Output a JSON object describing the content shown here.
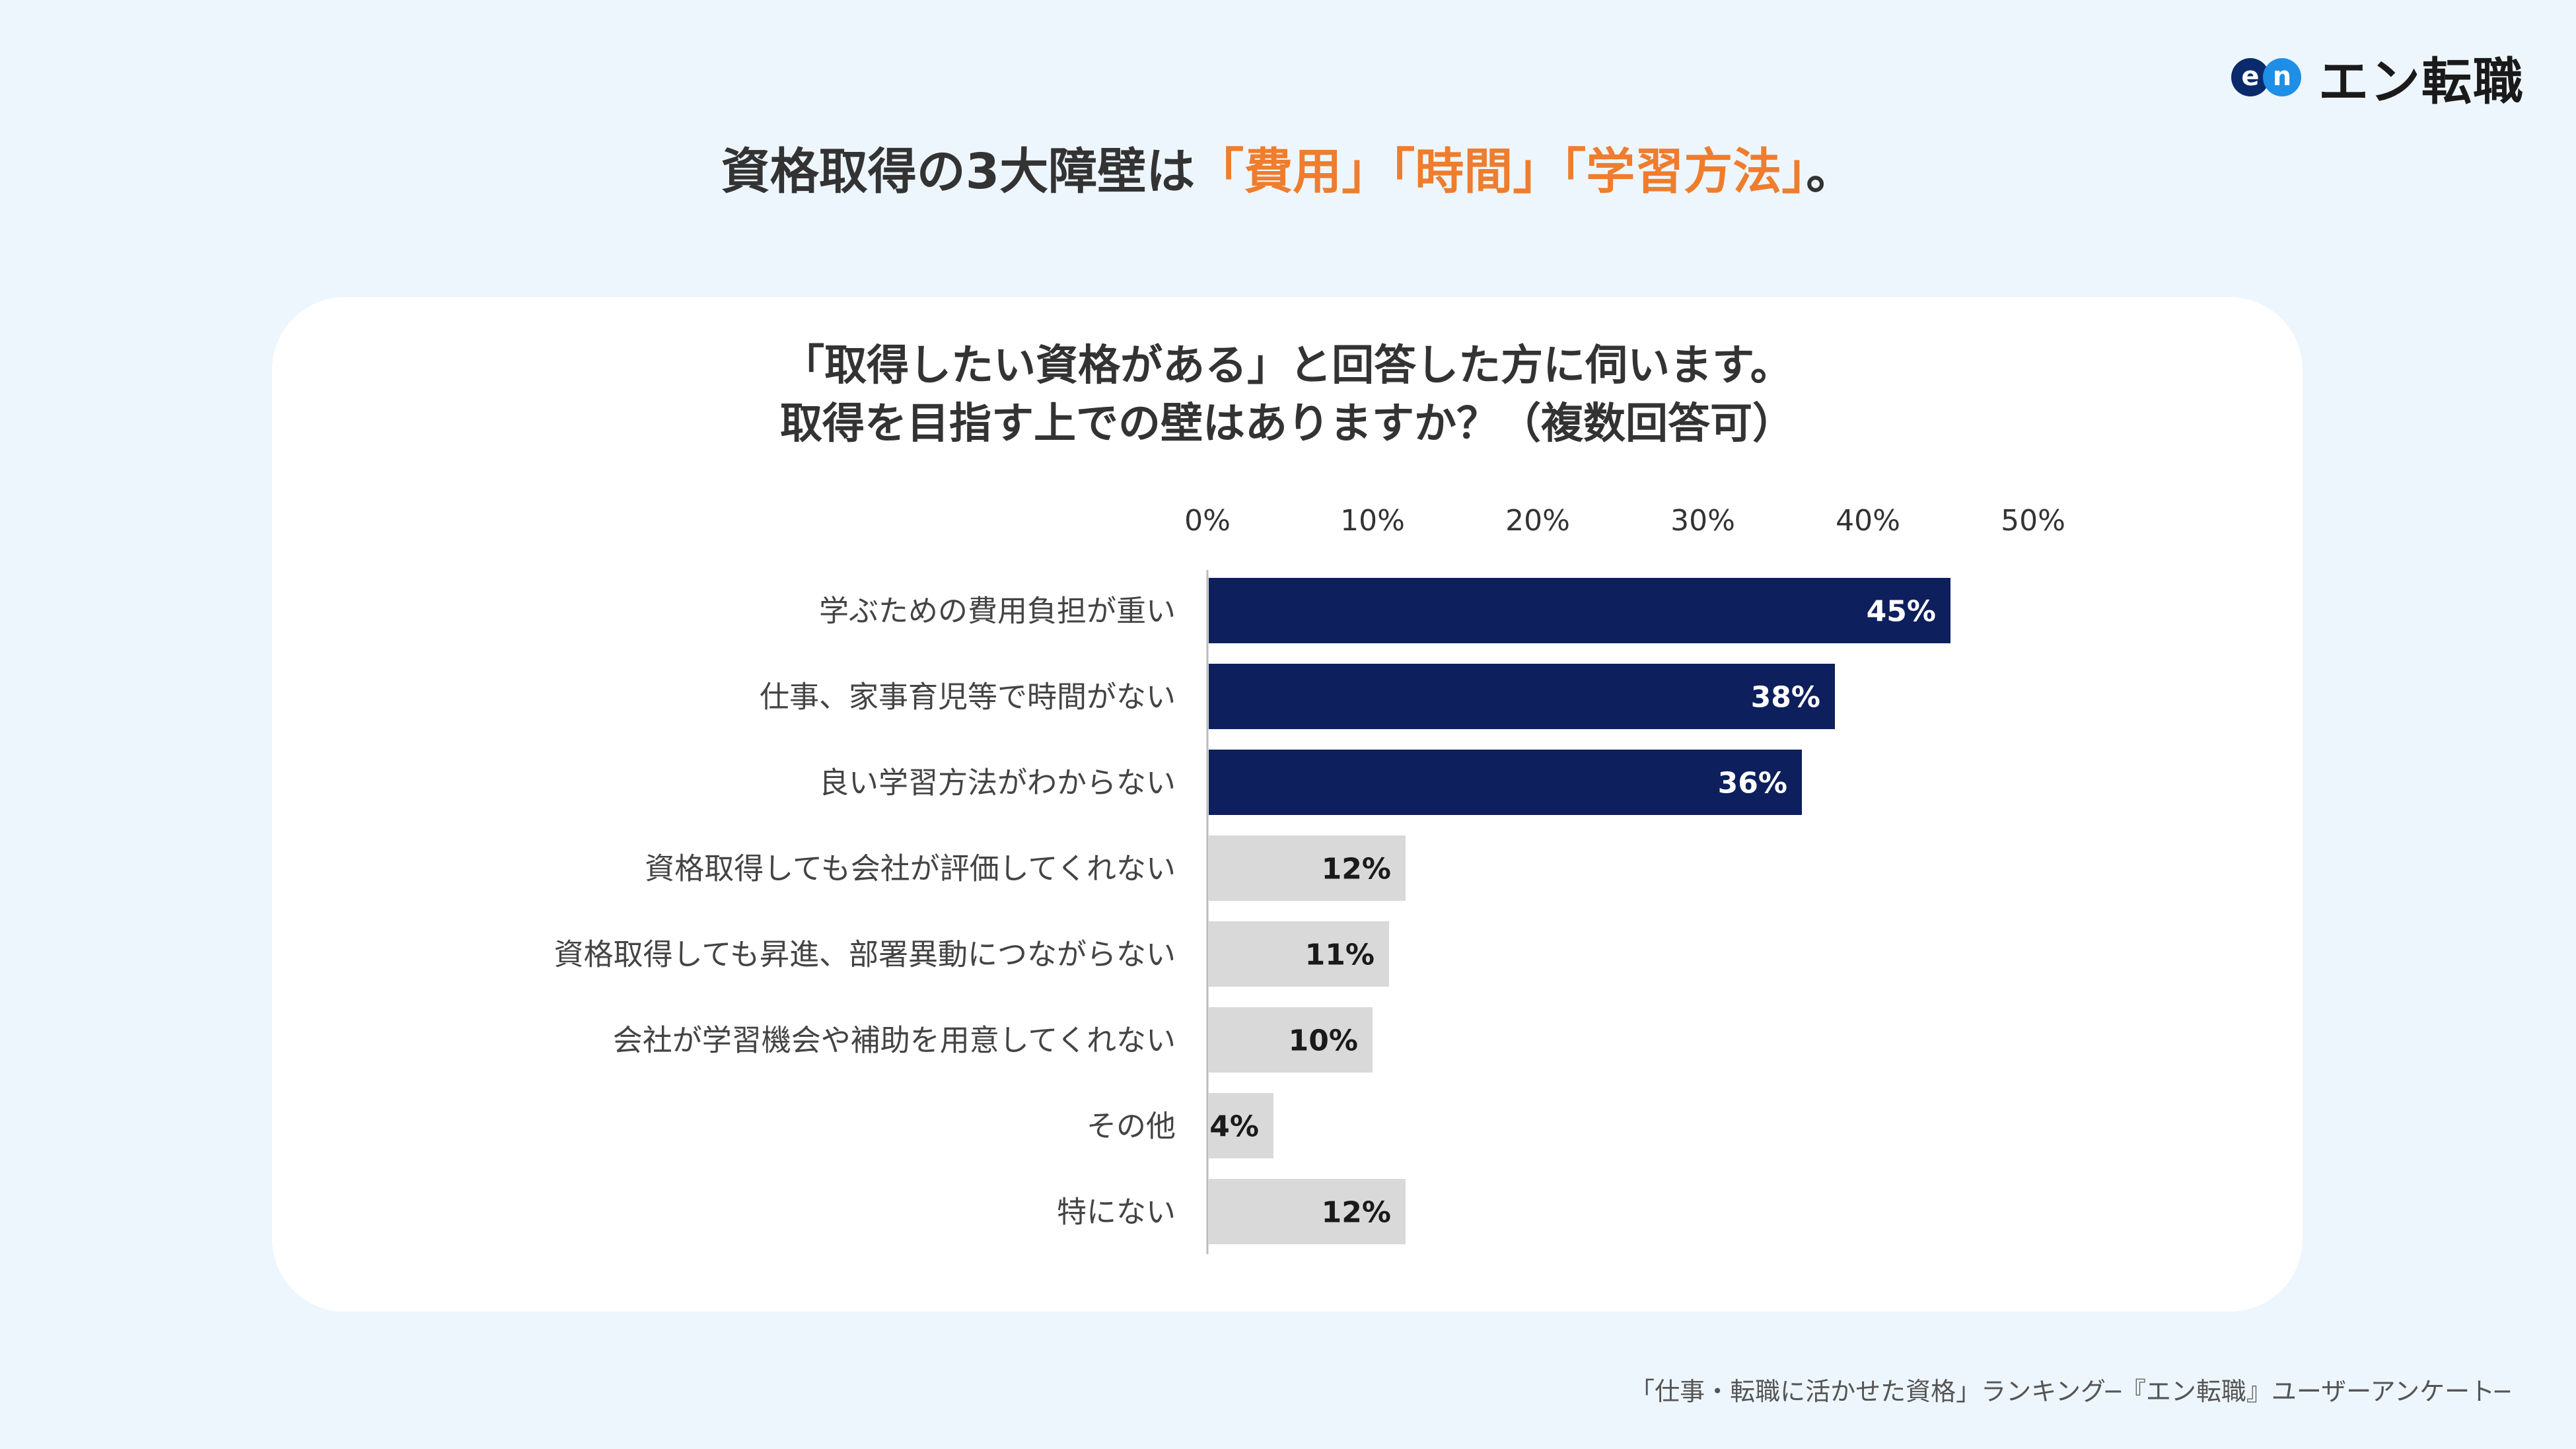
{
  "brand": {
    "logo_e": "e",
    "logo_n": "n",
    "name": "エン転職"
  },
  "headline": {
    "prefix": "資格取得の3大障壁は",
    "accent": "「費用」「時間」「学習方法」",
    "suffix": "。",
    "accent_color": "#ee7d2e"
  },
  "question": {
    "line1": "「取得したい資格がある」と回答した方に伺います。",
    "line2": "取得を目指す上での壁はありますか？（複数回答可）"
  },
  "chart_data": {
    "type": "bar",
    "orientation": "horizontal",
    "axis_position": "top",
    "xlim": [
      0,
      50
    ],
    "ticks": [
      0,
      10,
      20,
      30,
      40,
      50
    ],
    "tick_labels": [
      "0%",
      "10%",
      "20%",
      "30%",
      "40%",
      "50%"
    ],
    "categories": [
      "学ぶための費用負担が重い",
      "仕事、家事育児等で時間がない",
      "良い学習方法がわからない",
      "資格取得しても会社が評価してくれない",
      "資格取得しても昇進、部署異動につながらない",
      "会社が学習機会や補助を用意してくれない",
      "その他",
      "特にない"
    ],
    "values": [
      45,
      38,
      36,
      12,
      11,
      10,
      4,
      12
    ],
    "value_labels": [
      "45%",
      "38%",
      "36%",
      "12%",
      "11%",
      "10%",
      "4%",
      "12%"
    ],
    "highlighted": [
      true,
      true,
      true,
      false,
      false,
      false,
      false,
      false
    ],
    "colors": {
      "highlight": "#0d1f5c",
      "normal": "#d9d9d9",
      "highlight_text": "#ffffff",
      "normal_text": "#1a1a1a",
      "axis": "#bbbbbb"
    }
  },
  "source": "「仕事・転職に活かせた資格」ランキング─『エン転職』ユーザーアンケート─"
}
